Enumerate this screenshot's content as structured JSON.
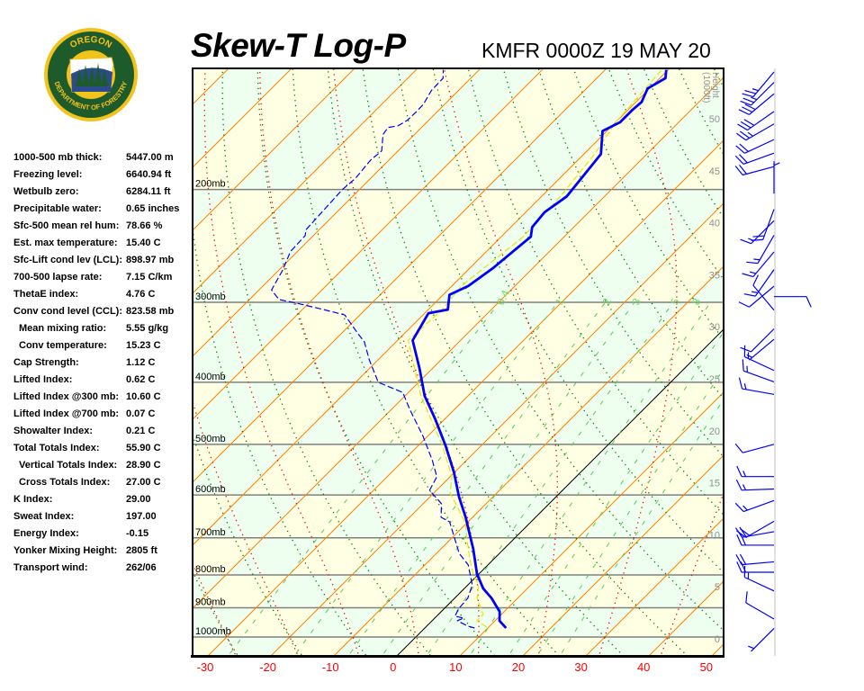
{
  "header": {
    "title": "Skew-T Log-P",
    "station": "KMFR 0000Z 19 MAY 20"
  },
  "logo": {
    "top_text": "OREGON",
    "bottom_text": "DEPARTMENT OF FORESTRY",
    "colors": {
      "ring": "#f2c31a",
      "field": "#1e5b2c"
    }
  },
  "indices": [
    {
      "label": "1000-500 mb thick:",
      "value": "5447.00 m",
      "indent": false
    },
    {
      "label": "Freezing level:",
      "value": "6640.94 ft",
      "indent": false
    },
    {
      "label": "Wetbulb zero:",
      "value": "6284.11 ft",
      "indent": false
    },
    {
      "label": "Precipitable water:",
      "value": "0.65 inches",
      "indent": false
    },
    {
      "label": "Sfc-500 mean rel hum:",
      "value": "78.66 %",
      "indent": false
    },
    {
      "label": "Est. max temperature:",
      "value": "15.40 C",
      "indent": false
    },
    {
      "label": "Sfc-Lift cond lev (LCL):",
      "value": "898.97 mb",
      "indent": false
    },
    {
      "label": "700-500 lapse rate:",
      "value": "7.15 C/km",
      "indent": false
    },
    {
      "label": "ThetaE index:",
      "value": "4.76 C",
      "indent": false
    },
    {
      "label": "Conv cond level (CCL):",
      "value": "823.58 mb",
      "indent": false
    },
    {
      "label": "Mean mixing ratio:",
      "value": "5.55 g/kg",
      "indent": true
    },
    {
      "label": "Conv temperature:",
      "value": "15.23 C",
      "indent": true
    },
    {
      "label": "Cap Strength:",
      "value": "1.12 C",
      "indent": false
    },
    {
      "label": "Lifted Index:",
      "value": "0.62 C",
      "indent": false
    },
    {
      "label": "Lifted Index @300 mb:",
      "value": "10.60 C",
      "indent": false
    },
    {
      "label": "Lifted Index @700 mb:",
      "value": "0.07 C",
      "indent": false
    },
    {
      "label": "Showalter Index:",
      "value": "0.21 C",
      "indent": false
    },
    {
      "label": "Total Totals Index:",
      "value": "55.90 C",
      "indent": false
    },
    {
      "label": "Vertical Totals Index:",
      "value": "28.90 C",
      "indent": true
    },
    {
      "label": "Cross Totals Index:",
      "value": "27.00 C",
      "indent": true
    },
    {
      "label": "K Index:",
      "value": "29.00",
      "indent": false
    },
    {
      "label": "Sweat Index:",
      "value": "197.00",
      "indent": false
    },
    {
      "label": "Energy Index:",
      "value": "-0.15",
      "indent": false
    },
    {
      "label": "Yonker Mixing Height:",
      "value": "2805 ft",
      "indent": false
    },
    {
      "label": "Transport wind:",
      "value": "262/06",
      "indent": false
    }
  ],
  "chart_data": {
    "type": "skewt",
    "title": "Skew-T Log-P",
    "subtitle": "KMFR 0000Z 19 MAY 20",
    "temperature_axis": {
      "unit": "C",
      "ticks": [
        -30,
        -20,
        -10,
        0,
        10,
        20,
        30,
        40,
        50
      ],
      "tick_color": "#ff0000"
    },
    "pressure_axis": {
      "scale": "log",
      "range_mb": [
        1070,
        129
      ],
      "levels": [
        1000,
        900,
        800,
        700,
        600,
        500,
        400,
        300,
        200
      ],
      "labels": [
        "1000mb",
        "900mb",
        "800mb",
        "700mb",
        "600mb",
        "500mb",
        "400mb",
        "300mb",
        "200mb"
      ]
    },
    "height_axis": {
      "label": "Height (1000ft)",
      "ticks": [
        0,
        5,
        10,
        15,
        20,
        25,
        30,
        35,
        40,
        45,
        50
      ],
      "color": "#909090"
    },
    "mixing_ratio_labels": [
      "0.4",
      "1",
      "2",
      "3",
      "5",
      "8"
    ],
    "mixing_ratio_values": [
      0.4,
      1,
      2,
      3,
      5,
      8,
      12,
      16,
      20
    ],
    "colors": {
      "temperature": "#0000ff",
      "dewpoint": "#0000ff",
      "wetbulb": "#e6e600",
      "isotherm": "#ff8000",
      "zero_isotherm": "#000000",
      "dry_adiabat": "#008000",
      "moist_adiabat": "#ff0000",
      "mixing_ratio": "#55cc55",
      "isobar": "#808080",
      "band_a": "#ffffe4",
      "band_b": "#eefff0",
      "wind_barb": "#0000ff"
    },
    "series": [
      {
        "key": "temperature",
        "style": "solid-thick",
        "points": [
          [
            968,
            12.9
          ],
          [
            943,
            10.7
          ],
          [
            913,
            9.3
          ],
          [
            870,
            5.9
          ],
          [
            840,
            3.0
          ],
          [
            797,
            -0.3
          ],
          [
            728,
            -4.9
          ],
          [
            683,
            -8.4
          ],
          [
            650,
            -11.1
          ],
          [
            604,
            -15.4
          ],
          [
            553,
            -20.1
          ],
          [
            502,
            -25.7
          ],
          [
            456,
            -31.6
          ],
          [
            420,
            -36.9
          ],
          [
            381,
            -42.0
          ],
          [
            344,
            -47.6
          ],
          [
            312,
            -49.4
          ],
          [
            308,
            -46.9
          ],
          [
            292,
            -49.0
          ],
          [
            283,
            -47.4
          ],
          [
            265,
            -46.3
          ],
          [
            237,
            -45.3
          ],
          [
            229,
            -46.6
          ],
          [
            217,
            -47.0
          ],
          [
            205,
            -46.0
          ],
          [
            176,
            -47.3
          ],
          [
            162,
            -50.7
          ],
          [
            157,
            -49.3
          ],
          [
            150,
            -49.3
          ],
          [
            146,
            -49.1
          ],
          [
            139,
            -50.3
          ],
          [
            134,
            -49.1
          ],
          [
            130,
            -50.3
          ]
        ]
      },
      {
        "key": "dewpoint",
        "style": "dashed",
        "points": [
          [
            968,
            7.9
          ],
          [
            962,
            6.6
          ],
          [
            943,
            4.0
          ],
          [
            934,
            4.6
          ],
          [
            928,
            2.9
          ],
          [
            902,
            2.3
          ],
          [
            870,
            2.1
          ],
          [
            829,
            0.7
          ],
          [
            772,
            -3.1
          ],
          [
            740,
            -6.4
          ],
          [
            700,
            -9.6
          ],
          [
            661,
            -12.9
          ],
          [
            650,
            -15.0
          ],
          [
            619,
            -17.1
          ],
          [
            590,
            -21.1
          ],
          [
            562,
            -22.1
          ],
          [
            530,
            -25.4
          ],
          [
            486,
            -30.7
          ],
          [
            441,
            -37.1
          ],
          [
            415,
            -40.9
          ],
          [
            400,
            -46.4
          ],
          [
            369,
            -51.4
          ],
          [
            346,
            -55.0
          ],
          [
            336,
            -57.3
          ],
          [
            314,
            -62.4
          ],
          [
            308,
            -66.6
          ],
          [
            301,
            -71.9
          ],
          [
            297,
            -75.3
          ],
          [
            287,
            -78.0
          ],
          [
            267,
            -79.4
          ],
          [
            250,
            -81.1
          ],
          [
            236,
            -81.3
          ],
          [
            231,
            -82.1
          ],
          [
            215,
            -82.4
          ],
          [
            200,
            -82.7
          ],
          [
            192,
            -82.4
          ],
          [
            180,
            -82.9
          ],
          [
            174,
            -82.6
          ],
          [
            164,
            -85.0
          ],
          [
            160,
            -85.3
          ],
          [
            159,
            -84.0
          ],
          [
            156,
            -83.4
          ],
          [
            151,
            -83.3
          ],
          [
            147,
            -83.4
          ],
          [
            140,
            -84.3
          ],
          [
            134,
            -84.4
          ],
          [
            130,
            -85.7
          ]
        ]
      },
      {
        "key": "wetbulb",
        "style": "dashed",
        "points": [
          [
            965,
            9.7
          ],
          [
            943,
            7.1
          ],
          [
            922,
            7.1
          ],
          [
            870,
            3.6
          ],
          [
            829,
            1.7
          ],
          [
            797,
            -0.9
          ],
          [
            757,
            -3.7
          ],
          [
            705,
            -7.3
          ],
          [
            665,
            -10.1
          ],
          [
            624,
            -14.3
          ],
          [
            596,
            -17.4
          ],
          [
            562,
            -19.7
          ],
          [
            502,
            -26.2
          ],
          [
            420,
            -37.5
          ],
          [
            344,
            -48.3
          ],
          [
            308,
            -47.8
          ],
          [
            283,
            -48.5
          ],
          [
            237,
            -46.5
          ],
          [
            205,
            -47.0
          ],
          [
            176,
            -48.3
          ],
          [
            157,
            -50.0
          ],
          [
            130,
            -51.0
          ]
        ]
      }
    ],
    "wind_barbs": [
      {
        "height_kft": 1.0,
        "dir": 225,
        "speed": 5
      },
      {
        "height_kft": 1.9,
        "dir": 300,
        "speed": 10
      },
      {
        "height_kft": 4.6,
        "dir": 295,
        "speed": 15
      },
      {
        "height_kft": 6.4,
        "dir": 270,
        "speed": 20
      },
      {
        "height_kft": 7.4,
        "dir": 265,
        "speed": 20
      },
      {
        "height_kft": 9.0,
        "dir": 270,
        "speed": 20
      },
      {
        "height_kft": 10.3,
        "dir": 260,
        "speed": 20
      },
      {
        "height_kft": 11.3,
        "dir": 240,
        "speed": 20
      },
      {
        "height_kft": 13.3,
        "dir": 250,
        "speed": 15
      },
      {
        "height_kft": 14.4,
        "dir": 268,
        "speed": 15
      },
      {
        "height_kft": 15.6,
        "dir": 270,
        "speed": 15
      },
      {
        "height_kft": 18.7,
        "dir": 255,
        "speed": 10
      },
      {
        "height_kft": 23.5,
        "dir": 280,
        "speed": 15
      },
      {
        "height_kft": 24.7,
        "dir": 290,
        "speed": 15
      },
      {
        "height_kft": 25.8,
        "dir": 295,
        "speed": 15
      },
      {
        "height_kft": 28.8,
        "dir": 230,
        "speed": 5
      },
      {
        "height_kft": 29.8,
        "dir": 225,
        "speed": 10
      },
      {
        "height_kft": 31.6,
        "dir": 320,
        "speed": 10
      },
      {
        "height_kft": 32.9,
        "dir": 90,
        "speed": 10
      },
      {
        "height_kft": 33.9,
        "dir": 230,
        "speed": 10
      },
      {
        "height_kft": 35.5,
        "dir": 215,
        "speed": 15
      },
      {
        "height_kft": 37.2,
        "dir": 220,
        "speed": 15
      },
      {
        "height_kft": 38.8,
        "dir": 210,
        "speed": 15
      },
      {
        "height_kft": 40.2,
        "dir": 225,
        "speed": 15
      },
      {
        "height_kft": 41.3,
        "dir": 200,
        "speed": 20
      },
      {
        "height_kft": 42.8,
        "dir": 0,
        "speed": 5
      },
      {
        "height_kft": 45.4,
        "dir": 255,
        "speed": 20
      },
      {
        "height_kft": 46.7,
        "dir": 250,
        "speed": 20
      },
      {
        "height_kft": 48.0,
        "dir": 245,
        "speed": 20
      },
      {
        "height_kft": 49.5,
        "dir": 240,
        "speed": 25
      },
      {
        "height_kft": 50.7,
        "dir": 235,
        "speed": 30
      },
      {
        "height_kft": 52.4,
        "dir": 230,
        "speed": 30
      },
      {
        "height_kft": 53.5,
        "dir": 225,
        "speed": 25
      },
      {
        "height_kft": 54.5,
        "dir": 220,
        "speed": 25
      }
    ]
  }
}
